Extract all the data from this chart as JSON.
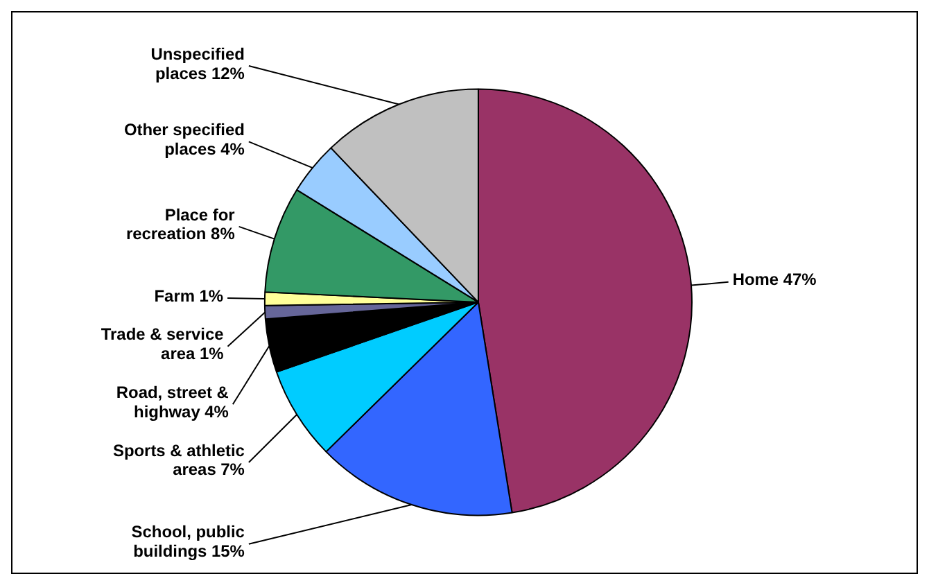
{
  "chart_data": {
    "type": "pie",
    "categories": [
      "Home",
      "School, public buildings",
      "Sports & athletic areas",
      "Road, street & highway",
      "Trade & service area",
      "Farm",
      "Place for recreation",
      "Other specified places",
      "Unspecified places"
    ],
    "values": [
      47,
      15,
      7,
      4,
      1,
      1,
      8,
      4,
      12
    ],
    "colors": [
      "#993366",
      "#3366ff",
      "#00ccff",
      "#000000",
      "#666699",
      "#ffff99",
      "#339966",
      "#99ccff",
      "#c0c0c0"
    ],
    "value_labels": [
      "47%",
      "15%",
      "7%",
      "4%",
      "1%",
      "1%",
      "8%",
      "4%",
      "12%"
    ],
    "legend": false
  }
}
